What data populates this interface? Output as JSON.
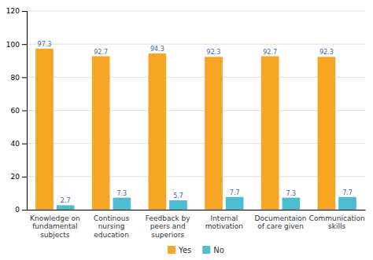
{
  "chart_data": {
    "type": "bar",
    "categories": [
      "Knowledge on\nfundamental\nsubjects",
      "Continous\nnursing\neducation",
      "Feedback by\npeers and\nsuperiors",
      "Internal\nmotivation",
      "Documentaion\nof care given",
      "Communication\nskills"
    ],
    "series": [
      {
        "name": "Yes",
        "color": "#F5A623",
        "values": [
          97.3,
          92.7,
          94.3,
          92.3,
          92.7,
          92.3
        ]
      },
      {
        "name": "No",
        "color": "#4BBFCF",
        "values": [
          2.7,
          7.3,
          5.7,
          7.7,
          7.3,
          7.7
        ]
      }
    ],
    "ylim": [
      0,
      120
    ],
    "yticks": [
      0,
      20,
      40,
      60,
      80,
      100,
      120
    ],
    "grid": true,
    "data_labels": true,
    "legend": "bottom"
  }
}
